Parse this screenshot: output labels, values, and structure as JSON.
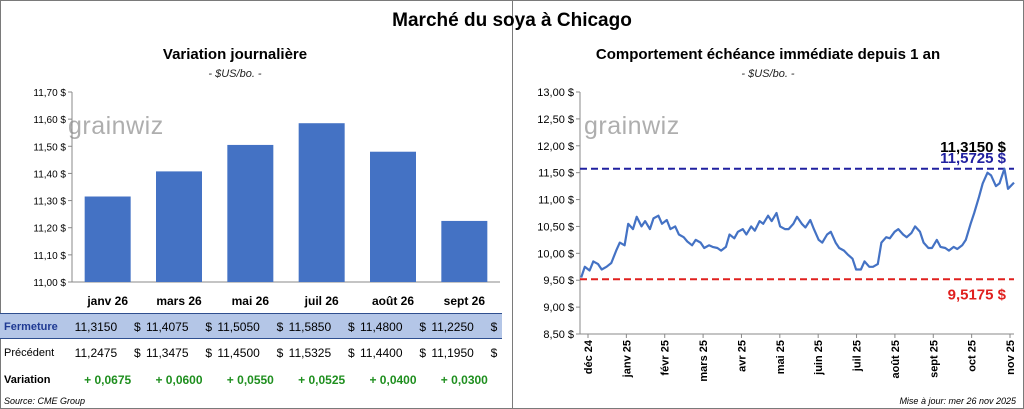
{
  "page": {
    "title": "Marché du soya à Chicago",
    "source": "Source: CME Group",
    "updated": "Mise à jour: mer 26 nov 2025",
    "logo_text": "grainwiz"
  },
  "left_panel": {
    "title": "Variation  journalière",
    "subtitle": "- $US/bo. -",
    "table": {
      "rows": [
        {
          "label": "Fermeture",
          "values": [
            "11,3150",
            "11,4075",
            "11,5050",
            "11,5850",
            "11,4800",
            "11,2250"
          ],
          "unit": "$"
        },
        {
          "label": "Précédent",
          "values": [
            "11,2475",
            "11,3475",
            "11,4500",
            "11,5325",
            "11,4400",
            "11,1950"
          ],
          "unit": "$"
        },
        {
          "label": "Variation",
          "values": [
            "+ 0,0675",
            "+ 0,0600",
            "+ 0,0550",
            "+ 0,0525",
            "+ 0,0400",
            "+ 0,0300"
          ]
        }
      ]
    }
  },
  "right_panel": {
    "title": "Comportement  échéance immédiate depuis 1 an",
    "subtitle": "- $US/bo. -",
    "annotations": {
      "last": "11,3150 $",
      "high": "11,5725 $",
      "low": "9,5175 $"
    }
  },
  "chart_data": [
    {
      "type": "bar",
      "categories": [
        "janv 26",
        "mars 26",
        "mai 26",
        "juil 26",
        "août 26",
        "sept 26"
      ],
      "values": [
        11.315,
        11.4075,
        11.505,
        11.585,
        11.48,
        11.225
      ],
      "title": "Variation  journalière",
      "ylim": [
        11.0,
        11.7
      ],
      "yticks": [
        "11,00 $",
        "11,10 $",
        "11,20 $",
        "11,30 $",
        "11,40 $",
        "11,50 $",
        "11,60 $",
        "11,70 $"
      ],
      "color": "#4472c4",
      "grid": false
    },
    {
      "type": "line",
      "title": "Comportement  échéance immédiate depuis 1 an",
      "x_start": "2024-12-01",
      "x_end": "2025-11-26",
      "xticks": [
        "déc 24",
        "janv 25",
        "févr 25",
        "mars 25",
        "avr 25",
        "mai 25",
        "juin 25",
        "juil 25",
        "août 25",
        "sept 25",
        "oct 25",
        "nov 25"
      ],
      "yticks": [
        "8,50 $",
        "9,00 $",
        "9,50 $",
        "10,00 $",
        "10,50 $",
        "11,00 $",
        "11,50 $",
        "12,00 $",
        "12,50 $",
        "13,00 $"
      ],
      "ylim": [
        8.5,
        13.0
      ],
      "series": [
        {
          "color": "#4472c4",
          "x": [
            "2024-12-02",
            "2024-12-05",
            "2024-12-09",
            "2024-12-12",
            "2024-12-16",
            "2024-12-19",
            "2024-12-23",
            "2024-12-27",
            "2024-12-31",
            "2025-01-03",
            "2025-01-07",
            "2025-01-10",
            "2025-01-14",
            "2025-01-17",
            "2025-01-21",
            "2025-01-24",
            "2025-01-28",
            "2025-01-31",
            "2025-02-04",
            "2025-02-07",
            "2025-02-11",
            "2025-02-14",
            "2025-02-18",
            "2025-02-21",
            "2025-02-25",
            "2025-02-28",
            "2025-03-04",
            "2025-03-07",
            "2025-03-11",
            "2025-03-14",
            "2025-03-18",
            "2025-03-21",
            "2025-03-25",
            "2025-03-28",
            "2025-04-01",
            "2025-04-04",
            "2025-04-08",
            "2025-04-11",
            "2025-04-15",
            "2025-04-18",
            "2025-04-22",
            "2025-04-25",
            "2025-04-29",
            "2025-05-02",
            "2025-05-06",
            "2025-05-09",
            "2025-05-13",
            "2025-05-16",
            "2025-05-20",
            "2025-05-23",
            "2025-05-27",
            "2025-05-30",
            "2025-06-03",
            "2025-06-06",
            "2025-06-10",
            "2025-06-13",
            "2025-06-17",
            "2025-06-20",
            "2025-06-24",
            "2025-06-27",
            "2025-07-01",
            "2025-07-04",
            "2025-07-08",
            "2025-07-11",
            "2025-07-15",
            "2025-07-18",
            "2025-07-22",
            "2025-07-25",
            "2025-07-29",
            "2025-08-01",
            "2025-08-05",
            "2025-08-08",
            "2025-08-12",
            "2025-08-15",
            "2025-08-19",
            "2025-08-22",
            "2025-08-26",
            "2025-08-29",
            "2025-09-02",
            "2025-09-05",
            "2025-09-09",
            "2025-09-12",
            "2025-09-16",
            "2025-09-19",
            "2025-09-23",
            "2025-09-26",
            "2025-09-30",
            "2025-10-03",
            "2025-10-07",
            "2025-10-10",
            "2025-10-14",
            "2025-10-17",
            "2025-10-21",
            "2025-10-24",
            "2025-10-28",
            "2025-10-31",
            "2025-11-04",
            "2025-11-07",
            "2025-11-11",
            "2025-11-14",
            "2025-11-18",
            "2025-11-21",
            "2025-11-26"
          ],
          "y": [
            9.55,
            9.75,
            9.68,
            9.85,
            9.8,
            9.7,
            9.75,
            9.82,
            10.05,
            10.2,
            10.15,
            10.55,
            10.45,
            10.68,
            10.5,
            10.6,
            10.45,
            10.65,
            10.7,
            10.55,
            10.62,
            10.45,
            10.5,
            10.35,
            10.3,
            10.22,
            10.15,
            10.25,
            10.2,
            10.1,
            10.15,
            10.12,
            10.1,
            10.05,
            10.12,
            10.35,
            10.28,
            10.4,
            10.45,
            10.35,
            10.5,
            10.42,
            10.6,
            10.55,
            10.7,
            10.6,
            10.75,
            10.5,
            10.45,
            10.45,
            10.55,
            10.68,
            10.55,
            10.48,
            10.62,
            10.45,
            10.25,
            10.2,
            10.35,
            10.4,
            10.2,
            10.1,
            10.05,
            9.98,
            9.9,
            9.7,
            9.7,
            9.85,
            9.75,
            9.75,
            9.8,
            10.2,
            10.3,
            10.28,
            10.4,
            10.45,
            10.35,
            10.3,
            10.38,
            10.5,
            10.4,
            10.2,
            10.1,
            10.1,
            10.25,
            10.12,
            10.1,
            10.05,
            10.12,
            10.08,
            10.15,
            10.25,
            10.55,
            10.75,
            11.05,
            11.3,
            11.5,
            11.45,
            11.25,
            11.3,
            11.5725,
            11.2,
            11.315
          ]
        }
      ],
      "reference_lines": [
        {
          "label": "11,5725 $",
          "value": 11.5725,
          "color": "#2020a0",
          "style": "dashed"
        },
        {
          "label": "9,5175 $",
          "value": 9.5175,
          "color": "#e0201f",
          "style": "dashed"
        }
      ],
      "grid": false
    }
  ]
}
